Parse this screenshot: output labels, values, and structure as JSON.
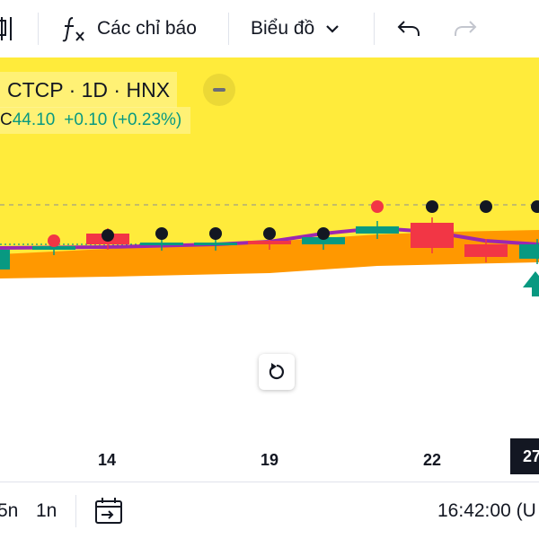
{
  "toolbar": {
    "indicators_label": "Các chỉ báo",
    "chart_label": "Biểu đồ"
  },
  "legend": {
    "title": "CTCP · 1D · HNX",
    "prefix": "C",
    "close": "44.10",
    "change": "+0.10 (+0.23%)"
  },
  "time_axis": {
    "ticks": [
      "14",
      "19",
      "22"
    ],
    "current": "27"
  },
  "bottombar": {
    "range_5n": "5n",
    "range_1n": "1n",
    "clock": "16:42:00 (U"
  },
  "colors": {
    "background_band": "#ffeb3b",
    "up": "#089981",
    "down": "#f23645",
    "cloud": "#ff9800",
    "ma_line": "#9c27b0",
    "marker": "#131722"
  },
  "chart_data": {
    "type": "candlestick",
    "x": [
      "",
      "",
      "14",
      "",
      "",
      "19",
      "",
      "",
      "22",
      "",
      "27"
    ],
    "candles": [
      {
        "x": "",
        "direction": "up"
      },
      {
        "x": "",
        "direction": "up"
      },
      {
        "x": "14",
        "direction": "down"
      },
      {
        "x": "",
        "direction": "up"
      },
      {
        "x": "",
        "direction": "up"
      },
      {
        "x": "19",
        "direction": "down"
      },
      {
        "x": "",
        "direction": "up"
      },
      {
        "x": "",
        "direction": "up"
      },
      {
        "x": "22",
        "direction": "down"
      },
      {
        "x": "",
        "direction": "down"
      },
      {
        "x": "27",
        "direction": "up"
      }
    ],
    "markers_above": [
      false,
      true,
      true,
      true,
      true,
      true,
      true,
      true,
      true,
      true,
      true
    ],
    "last_close": 44.1,
    "grid": false
  }
}
